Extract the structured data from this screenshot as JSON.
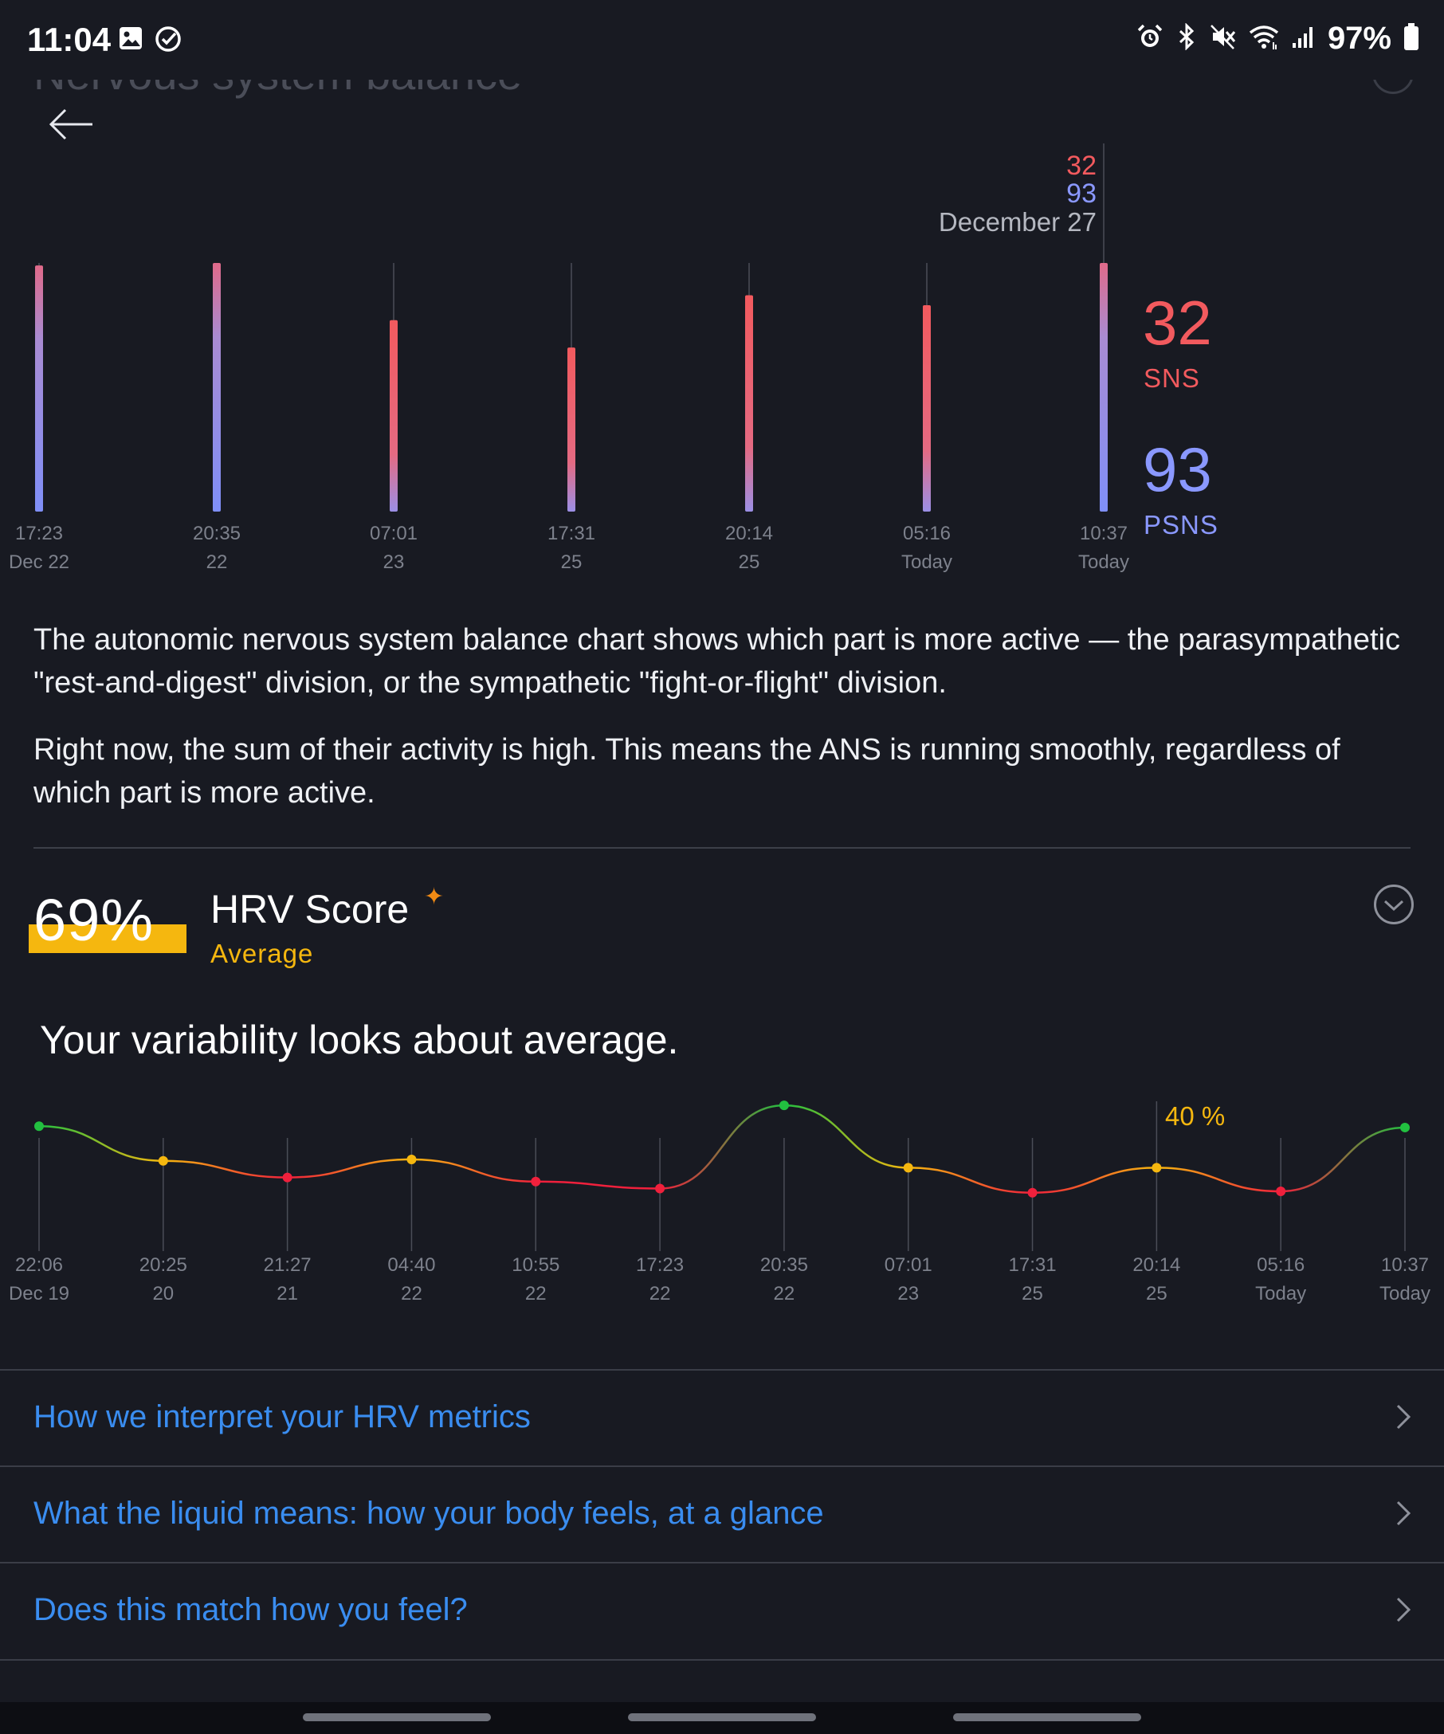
{
  "status_bar": {
    "time": "11:04",
    "battery": "97%",
    "left_icons": [
      "gallery-icon",
      "check-circle-icon"
    ],
    "right_icons": [
      "alarm-icon",
      "bluetooth-icon",
      "mute-icon",
      "wifi-icon",
      "signal-icon",
      "battery-icon"
    ]
  },
  "header": {
    "title": "Nervous system balance"
  },
  "balance_chart": {
    "selected": {
      "sns": "32",
      "psns": "93",
      "date": "December 27"
    },
    "sns_value": "32",
    "sns_label": "SNS",
    "psns_value": "93",
    "psns_label": "PSNS",
    "colors": {
      "sns": "#f25a5e",
      "psns": "#8a98ff"
    }
  },
  "description": {
    "p1": "The autonomic nervous system balance chart shows which part is more active — the parasympathetic \"rest-and-digest\" division, or the sympathetic \"fight-or-flight\" division.",
    "p2": "Right now, the sum of their activity is high. This means the ANS is running smoothly, regardless of which part is more active."
  },
  "hrv": {
    "score": "69%",
    "title": "HRV Score",
    "status": "Average",
    "headline": "Your variability looks about average.",
    "selected_label": "40 %",
    "accent": "#f5b70f"
  },
  "links": [
    {
      "label": "How we interpret your HRV metrics"
    },
    {
      "label": "What the liquid means: how your body feels, at a glance"
    },
    {
      "label": "Does this match how you feel?"
    }
  ],
  "chart_data": [
    {
      "type": "bar",
      "title": "Nervous system balance",
      "categories": [
        {
          "time": "17:23",
          "date": "Dec 22"
        },
        {
          "time": "20:35",
          "date": "22"
        },
        {
          "time": "07:01",
          "date": "23"
        },
        {
          "time": "17:31",
          "date": "25"
        },
        {
          "time": "20:14",
          "date": "25"
        },
        {
          "time": "05:16",
          "date": "Today"
        },
        {
          "time": "10:37",
          "date": "Today"
        }
      ],
      "series": [
        {
          "name": "SNS",
          "values": [
            30,
            8,
            55,
            62,
            40,
            50,
            32
          ]
        },
        {
          "name": "PSNS",
          "values": [
            62,
            95,
            45,
            30,
            48,
            45,
            93
          ]
        }
      ],
      "bar_fill_fraction": [
        0.99,
        1.0,
        0.77,
        0.66,
        0.87,
        0.83,
        1.0
      ],
      "selected_index": 6,
      "ylim": [
        0,
        100
      ]
    },
    {
      "type": "line",
      "title": "HRV Score",
      "categories": [
        {
          "time": "22:06",
          "date": "Dec 19"
        },
        {
          "time": "20:25",
          "date": "20"
        },
        {
          "time": "21:27",
          "date": "21"
        },
        {
          "time": "04:40",
          "date": "22"
        },
        {
          "time": "10:55",
          "date": "22"
        },
        {
          "time": "17:23",
          "date": "22"
        },
        {
          "time": "20:35",
          "date": "22"
        },
        {
          "time": "07:01",
          "date": "23"
        },
        {
          "time": "17:31",
          "date": "25"
        },
        {
          "time": "20:14",
          "date": "25"
        },
        {
          "time": "05:16",
          "date": "Today"
        },
        {
          "time": "10:37",
          "date": "Today"
        }
      ],
      "values": [
        70,
        45,
        33,
        46,
        30,
        25,
        85,
        40,
        22,
        40,
        23,
        69
      ],
      "ylim": [
        0,
        100
      ],
      "selected_index": 9,
      "level_colors": {
        "high": "#22c040",
        "average": "#f5b70f",
        "low": "#f0203c"
      }
    }
  ]
}
